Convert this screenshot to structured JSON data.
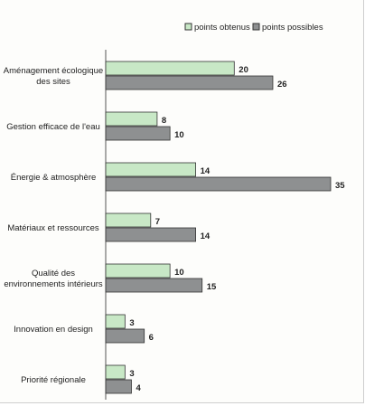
{
  "chart_data": {
    "type": "bar",
    "orientation": "horizontal",
    "legend_position": "top-right",
    "categories": [
      [
        "Aménagement écologique",
        "des sites"
      ],
      [
        "Gestion efficace de l'eau"
      ],
      [
        "Énergie & atmosphère"
      ],
      [
        "Matériaux et ressources"
      ],
      [
        "Qualité des",
        "environnements intérieurs"
      ],
      [
        "Innovation en design"
      ],
      [
        "Priorité régionale"
      ]
    ],
    "series": [
      {
        "name": "points obtenus",
        "color": "#c8e8c6",
        "values": [
          20,
          8,
          14,
          7,
          10,
          3,
          3
        ]
      },
      {
        "name": "points possibles",
        "color": "#8e9091",
        "values": [
          26,
          10,
          35,
          14,
          15,
          6,
          4
        ]
      }
    ],
    "xlim": [
      0,
      35
    ],
    "grid": false
  }
}
